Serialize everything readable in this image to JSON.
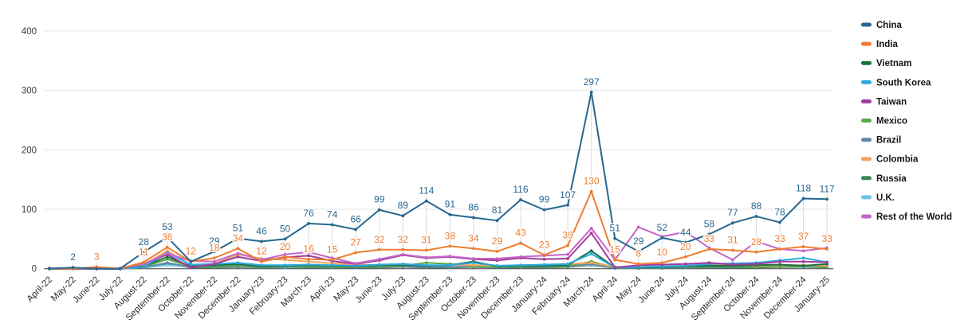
{
  "chart_data": {
    "type": "line",
    "title": "",
    "xlabel": "",
    "ylabel": "",
    "legend_position": "right",
    "grid": true,
    "y_axis": {
      "min": 0,
      "max": 400,
      "ticks": [
        0,
        100,
        200,
        300,
        400
      ]
    },
    "style": {
      "grid_color": "#e6e6e6",
      "zero_line_color": "#3a3a3a",
      "leader_line_color": "#dcdcdc"
    },
    "categories": [
      "April-22",
      "May-22",
      "June-22",
      "July-22",
      "August-22",
      "September-22",
      "October-22",
      "November-22",
      "December-22",
      "January-23",
      "February-23",
      "March-23",
      "April-23",
      "May-23",
      "June-23",
      "July-23",
      "August-23",
      "September-23",
      "October-23",
      "November-23",
      "December-23",
      "January-24",
      "February-24",
      "March-24",
      "April-24",
      "May-24",
      "June-24",
      "July-24",
      "August-24",
      "September-24",
      "October-24",
      "November-24",
      "December-24",
      "January-25"
    ],
    "draw_order": [
      8,
      9,
      6,
      5,
      7,
      2,
      3,
      4,
      10,
      1,
      0
    ],
    "series": [
      {
        "name": "China",
        "color": "#27678F",
        "values": [
          0,
          2,
          0,
          0,
          28,
          53,
          12,
          29,
          51,
          46,
          50,
          76,
          74,
          66,
          99,
          89,
          114,
          91,
          86,
          81,
          116,
          99,
          107,
          297,
          51,
          29,
          52,
          44,
          58,
          77,
          88,
          78,
          118,
          117
        ],
        "labels": [
          "",
          "2",
          "",
          "",
          "28",
          "53",
          "",
          "29",
          "51",
          "46",
          "50",
          "76",
          "74",
          "66",
          "99",
          "89",
          "114",
          "91",
          "86",
          "81",
          "116",
          "99",
          "107",
          "297",
          "51",
          "29",
          "52",
          "44",
          "58",
          "77",
          "88",
          "78",
          "118",
          "117"
        ]
      },
      {
        "name": "India",
        "color": "#ED7D31",
        "values": [
          0,
          0,
          3,
          0,
          11,
          36,
          12,
          18,
          34,
          12,
          20,
          16,
          15,
          27,
          32,
          32,
          31,
          38,
          34,
          29,
          43,
          23,
          39,
          130,
          15,
          8,
          10,
          20,
          33,
          31,
          28,
          33,
          37,
          33
        ],
        "labels": [
          "",
          "",
          "3",
          "",
          "11",
          "36",
          "12",
          "18",
          "34",
          "12",
          "20",
          "16",
          "15",
          "27",
          "32",
          "32",
          "31",
          "38",
          "34",
          "29",
          "43",
          "23",
          "39",
          "130",
          "15",
          "8",
          "10",
          "20",
          "33",
          "31",
          "28",
          "33",
          "37",
          "33"
        ]
      },
      {
        "name": "Vietnam",
        "color": "#1E6F41",
        "values": [
          0,
          0,
          0,
          0,
          4,
          20,
          4,
          6,
          8,
          4,
          5,
          6,
          5,
          4,
          6,
          6,
          5,
          6,
          12,
          4,
          5,
          5,
          6,
          30,
          2,
          2,
          3,
          4,
          5,
          5,
          6,
          7,
          5,
          8
        ]
      },
      {
        "name": "South Korea",
        "color": "#2AA9E0",
        "values": [
          0,
          1,
          0,
          0,
          3,
          27,
          7,
          8,
          10,
          6,
          6,
          7,
          6,
          5,
          7,
          8,
          6,
          6,
          10,
          5,
          6,
          7,
          8,
          25,
          2,
          3,
          4,
          5,
          8,
          9,
          10,
          14,
          18,
          11
        ]
      },
      {
        "name": "Taiwan",
        "color": "#A13A9E",
        "values": [
          1,
          0,
          0,
          0,
          8,
          24,
          2,
          8,
          20,
          13,
          19,
          22,
          13,
          8,
          14,
          23,
          18,
          20,
          16,
          14,
          18,
          16,
          17,
          60,
          2,
          6,
          7,
          8,
          10,
          7,
          8,
          12,
          12,
          11
        ]
      },
      {
        "name": "Mexico",
        "color": "#56A944",
        "values": [
          0,
          0,
          0,
          0,
          3,
          16,
          4,
          4,
          6,
          3,
          4,
          4,
          3,
          3,
          4,
          5,
          10,
          8,
          4,
          3,
          4,
          4,
          5,
          12,
          2,
          2,
          3,
          3,
          4,
          4,
          3,
          4,
          5,
          3
        ]
      },
      {
        "name": "Brazil",
        "color": "#6188A8",
        "values": [
          0,
          0,
          0,
          0,
          2,
          10,
          3,
          3,
          4,
          2,
          3,
          3,
          2,
          2,
          3,
          3,
          3,
          3,
          3,
          2,
          3,
          3,
          4,
          8,
          1,
          1,
          2,
          2,
          3,
          3,
          3,
          4,
          6,
          4
        ]
      },
      {
        "name": "Colombia",
        "color": "#F2A35C",
        "values": [
          0,
          0,
          0,
          0,
          6,
          30,
          6,
          8,
          24,
          17,
          15,
          12,
          9,
          7,
          6,
          6,
          5,
          6,
          6,
          5,
          6,
          6,
          8,
          10,
          3,
          3,
          4,
          5,
          6,
          6,
          5,
          6,
          6,
          5
        ]
      },
      {
        "name": "Russia",
        "color": "#3C8656",
        "values": [
          0,
          0,
          0,
          0,
          2,
          8,
          2,
          2,
          3,
          2,
          2,
          2,
          2,
          2,
          2,
          3,
          2,
          2,
          3,
          2,
          2,
          2,
          3,
          6,
          1,
          1,
          1,
          2,
          2,
          2,
          2,
          3,
          3,
          2
        ]
      },
      {
        "name": "U.K.",
        "color": "#6CC5E9",
        "values": [
          0,
          0,
          1,
          0,
          2,
          6,
          3,
          3,
          4,
          3,
          2,
          3,
          3,
          3,
          3,
          4,
          3,
          3,
          4,
          3,
          3,
          3,
          4,
          7,
          1,
          2,
          2,
          2,
          3,
          3,
          4,
          5,
          4,
          3
        ]
      },
      {
        "name": "Rest of the World",
        "color": "#C566C8",
        "values": [
          1,
          1,
          0,
          1,
          8,
          26,
          13,
          12,
          26,
          15,
          24,
          28,
          18,
          9,
          16,
          24,
          19,
          21,
          17,
          17,
          20,
          22,
          24,
          68,
          15,
          70,
          54,
          62,
          35,
          15,
          46,
          33,
          30,
          35
        ]
      }
    ]
  }
}
